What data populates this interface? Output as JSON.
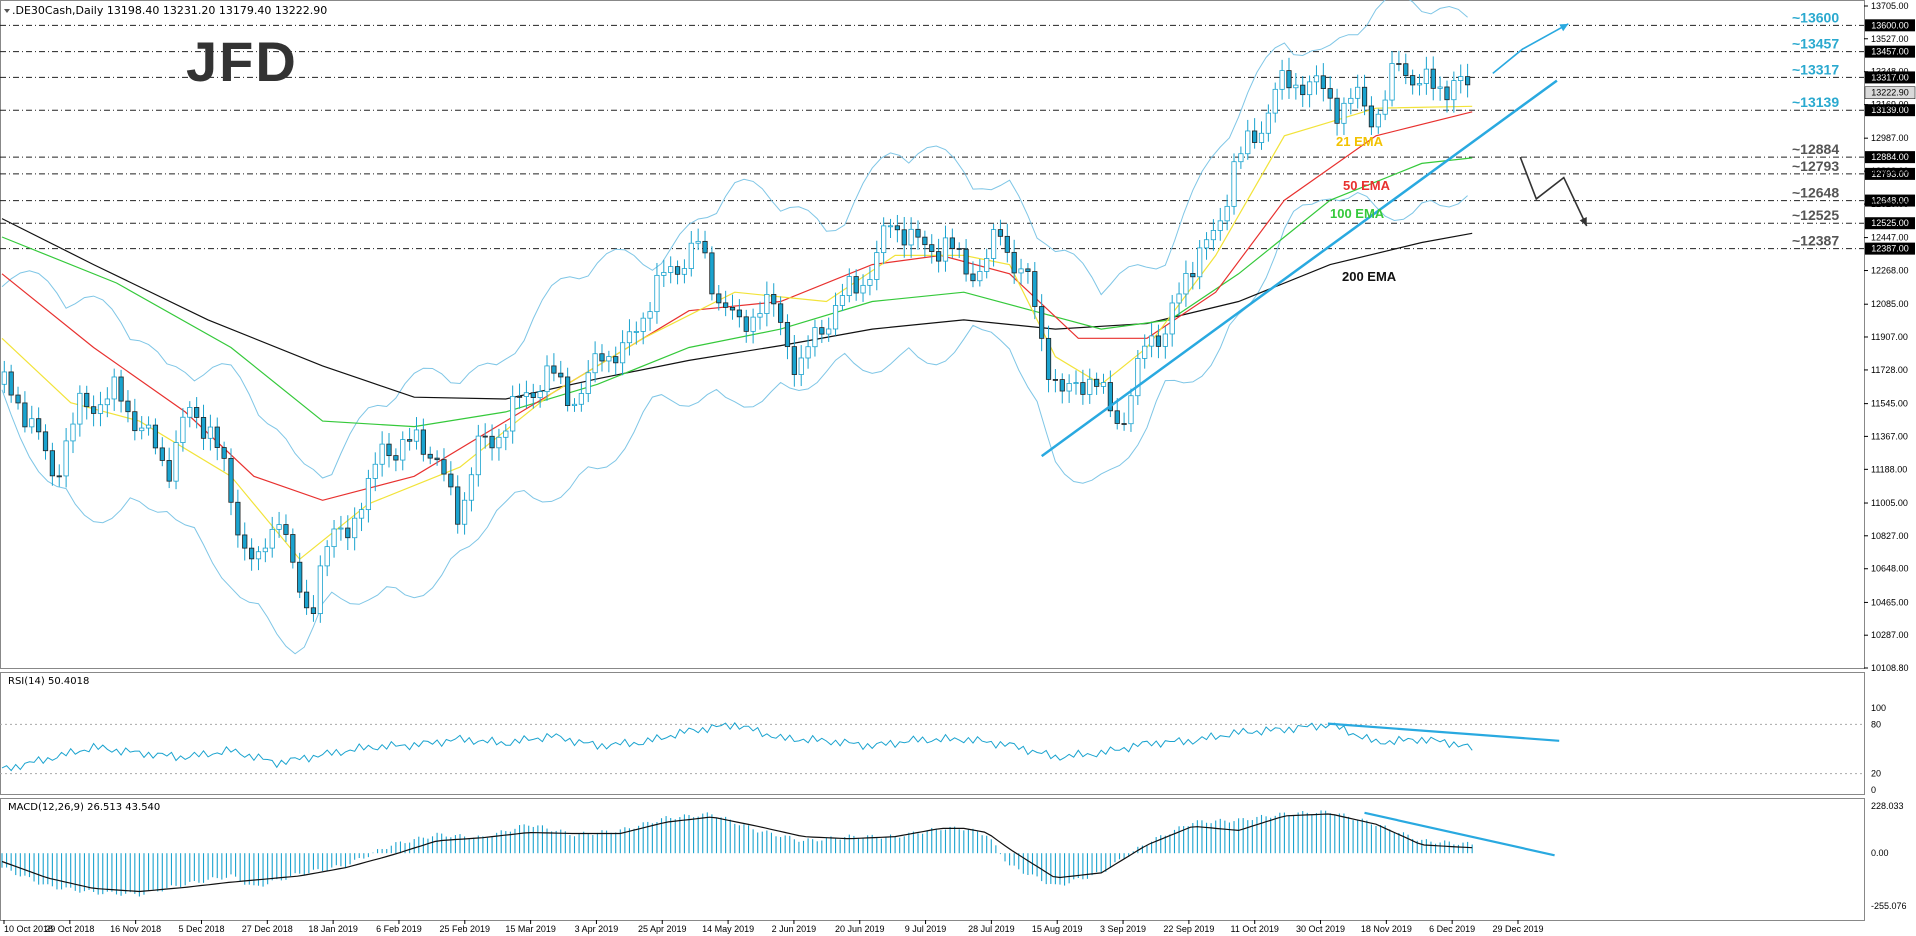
{
  "header": {
    "main": ".DE30Cash,Daily  13198.40 13231.20 13179.40 13222.90",
    "rsi": "RSI(14) 50.4018",
    "macd": "MACD(12,26,9) 26.513 43.540"
  },
  "brand": {
    "logo_text": "JFD"
  },
  "colors": {
    "candle": "#1aa3cf",
    "bollinger": "#7fc6e6",
    "ema21": "#f2e33a",
    "ema50": "#e8312f",
    "ema100": "#35c93b",
    "ema200": "#111111",
    "trendline": "#29a9e0",
    "level_label": "#2aa9cf",
    "grid": "#333333"
  },
  "levels": [
    {
      "label": "~13600",
      "value": 13600,
      "tag": "13600.00"
    },
    {
      "label": "~13457",
      "value": 13457,
      "tag": "13457.00"
    },
    {
      "label": "~13317",
      "value": 13317,
      "tag": "13317.00"
    },
    {
      "label": "~13139",
      "value": 13139,
      "tag": "13139.00"
    },
    {
      "label": "~12884",
      "value": 12884,
      "tag": "12884.00"
    },
    {
      "label": "~12793",
      "value": 12793,
      "tag": "12793.00"
    },
    {
      "label": "~12648",
      "value": 12648,
      "tag": "12648.00"
    },
    {
      "label": "~12525",
      "value": 12525,
      "tag": "12525.00"
    },
    {
      "label": "~12387",
      "value": 12387,
      "tag": "12387.00"
    }
  ],
  "current_price_tag": "13222.90",
  "ema_labels": {
    "ema21": "21 EMA",
    "ema50": "50 EMA",
    "ema100": "100 EMA",
    "ema200": "200 EMA"
  },
  "chart_data": [
    {
      "type": "candlestick",
      "ylim": [
        10108.8,
        13705
      ],
      "y_ticks": [
        "13705.00",
        "13527.00",
        "13348.00",
        "13169.00",
        "12987.00",
        "12808.00",
        "12629.00",
        "12447.00",
        "12268.00",
        "12085.00",
        "11907.00",
        "11728.00",
        "11545.00",
        "11367.00",
        "11188.00",
        "11005.00",
        "10827.00",
        "10648.00",
        "10465.00",
        "10287.00",
        "10108.80"
      ],
      "x_ticks": [
        "10 Oct 2018",
        "29 Oct 2018",
        "16 Nov 2018",
        "5 Dec 2018",
        "27 Dec 2018",
        "18 Jan 2019",
        "6 Feb 2019",
        "25 Feb 2019",
        "15 Mar 2019",
        "3 Apr 2019",
        "25 Apr 2019",
        "14 May 2019",
        "2 Jun 2019",
        "20 Jun 2019",
        "9 Jul 2019",
        "28 Jul 2019",
        "15 Aug 2019",
        "3 Sep 2019",
        "22 Sep 2019",
        "11 Oct 2019",
        "30 Oct 2019",
        "18 Nov 2019",
        "6 Dec 2019",
        "29 Dec 2019"
      ],
      "close_path": [
        [
          0,
          11650
        ],
        [
          12,
          11480
        ],
        [
          22,
          11150
        ],
        [
          34,
          11520
        ],
        [
          50,
          11600
        ],
        [
          62,
          11400
        ],
        [
          72,
          11180
        ],
        [
          80,
          11480
        ],
        [
          92,
          11420
        ],
        [
          102,
          10900
        ],
        [
          112,
          10650
        ],
        [
          122,
          11000
        ],
        [
          128,
          10550
        ],
        [
          134,
          10380
        ],
        [
          140,
          10730
        ],
        [
          150,
          10870
        ],
        [
          160,
          11050
        ],
        [
          166,
          11350
        ],
        [
          174,
          11250
        ],
        [
          182,
          11400
        ],
        [
          192,
          11150
        ],
        [
          200,
          10950
        ],
        [
          208,
          11300
        ],
        [
          218,
          11400
        ],
        [
          228,
          11600
        ],
        [
          240,
          11700
        ],
        [
          252,
          11550
        ],
        [
          262,
          11850
        ],
        [
          270,
          11780
        ],
        [
          278,
          12000
        ],
        [
          290,
          12250
        ],
        [
          304,
          12400
        ],
        [
          312,
          12150
        ],
        [
          322,
          11950
        ],
        [
          332,
          12100
        ],
        [
          340,
          12000
        ],
        [
          348,
          11700
        ],
        [
          356,
          11950
        ],
        [
          364,
          12050
        ],
        [
          372,
          12200
        ],
        [
          380,
          12250
        ],
        [
          388,
          12550
        ],
        [
          400,
          12400
        ],
        [
          412,
          12400
        ],
        [
          420,
          12300
        ],
        [
          428,
          12250
        ],
        [
          436,
          12500
        ],
        [
          442,
          12300
        ],
        [
          450,
          12150
        ],
        [
          456,
          11800
        ],
        [
          462,
          11550
        ],
        [
          470,
          11700
        ],
        [
          480,
          11600
        ],
        [
          490,
          11450
        ],
        [
          496,
          11700
        ],
        [
          500,
          11950
        ],
        [
          508,
          11900
        ],
        [
          518,
          12300
        ],
        [
          530,
          12450
        ],
        [
          538,
          12850
        ],
        [
          548,
          13000
        ],
        [
          556,
          13250
        ],
        [
          568,
          13300
        ],
        [
          576,
          13250
        ],
        [
          584,
          13150
        ],
        [
          592,
          13200
        ],
        [
          600,
          13100
        ],
        [
          604,
          13200
        ],
        [
          610,
          13400
        ],
        [
          618,
          13300
        ],
        [
          626,
          13250
        ],
        [
          634,
          13300
        ],
        [
          642,
          13222.9
        ]
      ],
      "ema21_path": [
        [
          0,
          11900
        ],
        [
          30,
          11550
        ],
        [
          60,
          11450
        ],
        [
          100,
          11150
        ],
        [
          130,
          10700
        ],
        [
          160,
          11000
        ],
        [
          200,
          11200
        ],
        [
          240,
          11600
        ],
        [
          280,
          11900
        ],
        [
          320,
          12150
        ],
        [
          360,
          12100
        ],
        [
          390,
          12350
        ],
        [
          420,
          12350
        ],
        [
          440,
          12300
        ],
        [
          460,
          11800
        ],
        [
          480,
          11650
        ],
        [
          500,
          11850
        ],
        [
          530,
          12350
        ],
        [
          560,
          13000
        ],
        [
          600,
          13150
        ],
        [
          642,
          13160
        ]
      ],
      "ema50_path": [
        [
          0,
          12250
        ],
        [
          40,
          11850
        ],
        [
          80,
          11500
        ],
        [
          110,
          11150
        ],
        [
          140,
          11020
        ],
        [
          180,
          11150
        ],
        [
          220,
          11450
        ],
        [
          260,
          11750
        ],
        [
          300,
          12050
        ],
        [
          340,
          12100
        ],
        [
          380,
          12300
        ],
        [
          410,
          12350
        ],
        [
          440,
          12250
        ],
        [
          470,
          11900
        ],
        [
          500,
          11900
        ],
        [
          530,
          12150
        ],
        [
          560,
          12650
        ],
        [
          600,
          13000
        ],
        [
          642,
          13130
        ]
      ],
      "ema100_path": [
        [
          0,
          12450
        ],
        [
          50,
          12200
        ],
        [
          100,
          11850
        ],
        [
          140,
          11450
        ],
        [
          180,
          11420
        ],
        [
          220,
          11500
        ],
        [
          260,
          11650
        ],
        [
          300,
          11850
        ],
        [
          340,
          11950
        ],
        [
          380,
          12100
        ],
        [
          420,
          12150
        ],
        [
          450,
          12050
        ],
        [
          480,
          11950
        ],
        [
          510,
          12000
        ],
        [
          540,
          12250
        ],
        [
          580,
          12650
        ],
        [
          620,
          12850
        ],
        [
          642,
          12880
        ]
      ],
      "ema200_path": [
        [
          0,
          12550
        ],
        [
          40,
          12300
        ],
        [
          90,
          12000
        ],
        [
          140,
          11750
        ],
        [
          180,
          11580
        ],
        [
          220,
          11570
        ],
        [
          260,
          11680
        ],
        [
          300,
          11780
        ],
        [
          340,
          11860
        ],
        [
          380,
          11950
        ],
        [
          420,
          12000
        ],
        [
          460,
          11950
        ],
        [
          500,
          11980
        ],
        [
          540,
          12100
        ],
        [
          580,
          12300
        ],
        [
          620,
          12420
        ],
        [
          642,
          12470
        ]
      ],
      "trendline": [
        [
          454,
          11260
        ],
        [
          679,
          13300
        ]
      ],
      "scenario_up": [
        [
          651,
          13339
        ],
        [
          664,
          13471
        ],
        [
          684,
          13608
        ]
      ],
      "scenario_down": [
        [
          663,
          12884
        ],
        [
          670,
          12657
        ],
        [
          682,
          12773
        ],
        [
          692,
          12510
        ]
      ]
    },
    {
      "type": "line",
      "name": "RSI(14)",
      "ylim": [
        0,
        100
      ],
      "y_ticks": [
        "100",
        "80",
        "20",
        "0"
      ],
      "path": [
        [
          0,
          25
        ],
        [
          20,
          38
        ],
        [
          40,
          52
        ],
        [
          60,
          45
        ],
        [
          80,
          40
        ],
        [
          100,
          48
        ],
        [
          120,
          33
        ],
        [
          140,
          43
        ],
        [
          160,
          52
        ],
        [
          180,
          55
        ],
        [
          200,
          62
        ],
        [
          220,
          57
        ],
        [
          240,
          66
        ],
        [
          260,
          54
        ],
        [
          280,
          58
        ],
        [
          300,
          72
        ],
        [
          320,
          80
        ],
        [
          340,
          63
        ],
        [
          360,
          60
        ],
        [
          380,
          54
        ],
        [
          400,
          61
        ],
        [
          420,
          62
        ],
        [
          440,
          55
        ],
        [
          460,
          40
        ],
        [
          480,
          45
        ],
        [
          500,
          57
        ],
        [
          520,
          60
        ],
        [
          540,
          70
        ],
        [
          560,
          74
        ],
        [
          580,
          80
        ],
        [
          600,
          58
        ],
        [
          620,
          62
        ],
        [
          634,
          57
        ],
        [
          642,
          50.4
        ]
      ],
      "divergence_line": [
        [
          579,
          81
        ],
        [
          680,
          60
        ]
      ]
    },
    {
      "type": "bar",
      "name": "MACD(12,26,9)",
      "ylim": [
        -255.076,
        228.033
      ],
      "y_ticks": [
        "228.033",
        "0.00",
        "-255.076"
      ],
      "histogram": [
        [
          0,
          -70
        ],
        [
          20,
          -160
        ],
        [
          40,
          -190
        ],
        [
          60,
          -200
        ],
        [
          80,
          -150
        ],
        [
          100,
          -110
        ],
        [
          110,
          -165
        ],
        [
          130,
          -100
        ],
        [
          150,
          -60
        ],
        [
          170,
          40
        ],
        [
          190,
          90
        ],
        [
          210,
          75
        ],
        [
          230,
          140
        ],
        [
          250,
          90
        ],
        [
          270,
          110
        ],
        [
          290,
          170
        ],
        [
          310,
          190
        ],
        [
          330,
          110
        ],
        [
          350,
          60
        ],
        [
          370,
          80
        ],
        [
          390,
          80
        ],
        [
          410,
          120
        ],
        [
          420,
          120
        ],
        [
          430,
          90
        ],
        [
          440,
          -60
        ],
        [
          460,
          -160
        ],
        [
          480,
          -95
        ],
        [
          500,
          50
        ],
        [
          520,
          150
        ],
        [
          540,
          160
        ],
        [
          560,
          190
        ],
        [
          580,
          200
        ],
        [
          600,
          140
        ],
        [
          620,
          60
        ],
        [
          642,
          43.54
        ]
      ],
      "signal": [
        [
          0,
          -40
        ],
        [
          20,
          -120
        ],
        [
          40,
          -170
        ],
        [
          60,
          -185
        ],
        [
          80,
          -165
        ],
        [
          100,
          -140
        ],
        [
          130,
          -110
        ],
        [
          150,
          -70
        ],
        [
          170,
          -10
        ],
        [
          190,
          60
        ],
        [
          210,
          75
        ],
        [
          230,
          100
        ],
        [
          250,
          95
        ],
        [
          270,
          95
        ],
        [
          290,
          150
        ],
        [
          310,
          175
        ],
        [
          330,
          130
        ],
        [
          350,
          80
        ],
        [
          370,
          70
        ],
        [
          390,
          80
        ],
        [
          410,
          120
        ],
        [
          420,
          120
        ],
        [
          430,
          100
        ],
        [
          440,
          20
        ],
        [
          460,
          -120
        ],
        [
          480,
          -95
        ],
        [
          500,
          40
        ],
        [
          520,
          130
        ],
        [
          540,
          110
        ],
        [
          560,
          180
        ],
        [
          580,
          190
        ],
        [
          600,
          140
        ],
        [
          620,
          40
        ],
        [
          642,
          26.513
        ]
      ],
      "divergence_line": [
        [
          595,
          195
        ],
        [
          678,
          -10
        ]
      ]
    }
  ]
}
